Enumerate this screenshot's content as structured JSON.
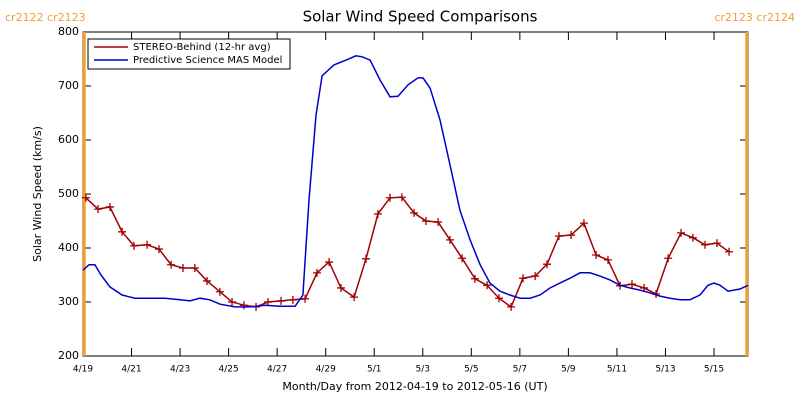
{
  "chart_data": {
    "type": "line",
    "title": "Solar Wind Speed Comparisons",
    "xlabel": "Month/Day from 2012-04-19 to 2012-05-16 (UT)",
    "ylabel": "Solar Wind Speed (km/s)",
    "xlim": [
      0,
      27.4
    ],
    "ylim": [
      200,
      800
    ],
    "yticks": [
      200,
      300,
      400,
      500,
      600,
      700,
      800
    ],
    "xticks": [
      {
        "value": 0,
        "label": "4/19"
      },
      {
        "value": 2,
        "label": "4/21"
      },
      {
        "value": 4,
        "label": "4/23"
      },
      {
        "value": 6,
        "label": "4/25"
      },
      {
        "value": 8,
        "label": "4/27"
      },
      {
        "value": 10,
        "label": "4/29"
      },
      {
        "value": 12,
        "label": "5/1"
      },
      {
        "value": 14,
        "label": "5/3"
      },
      {
        "value": 16,
        "label": "5/5"
      },
      {
        "value": 18,
        "label": "5/7"
      },
      {
        "value": 20,
        "label": "5/9"
      },
      {
        "value": 22,
        "label": "5/11"
      },
      {
        "value": 24,
        "label": "5/13"
      },
      {
        "value": 26,
        "label": "5/15"
      }
    ],
    "vlines": [
      {
        "x": 0.05,
        "label": "cr2122 cr2123",
        "color": "#f0a030"
      },
      {
        "x": 27.35,
        "label": "cr2123 cr2124",
        "color": "#f0a030"
      }
    ],
    "series": [
      {
        "name": "STEREO-Behind (12-hr avg)",
        "color": "#a00000",
        "marker": "plus",
        "x": [
          0.12,
          0.62,
          1.11,
          1.61,
          2.1,
          2.64,
          3.13,
          3.63,
          4.12,
          4.61,
          5.11,
          5.64,
          6.14,
          6.63,
          7.13,
          7.62,
          8.16,
          8.65,
          9.15,
          9.64,
          10.14,
          10.63,
          11.17,
          11.66,
          12.15,
          12.65,
          13.14,
          13.64,
          14.13,
          14.63,
          15.12,
          15.62,
          16.15,
          16.65,
          17.14,
          17.64,
          18.13,
          18.63,
          19.12,
          19.61,
          20.11,
          20.64,
          21.14,
          21.63,
          22.13,
          22.62,
          23.12,
          23.61,
          24.11,
          24.64,
          25.13,
          25.63,
          26.12,
          26.62
        ],
        "values": [
          493,
          472,
          476,
          430,
          404,
          406,
          398,
          369,
          363,
          363,
          339,
          319,
          300,
          294,
          291,
          300,
          302,
          304,
          306,
          354,
          374,
          326,
          309,
          380,
          463,
          493,
          494,
          465,
          450,
          448,
          415,
          381,
          343,
          331,
          307,
          291,
          344,
          348,
          370,
          422,
          424,
          446,
          387,
          378,
          330,
          333,
          326,
          315,
          381,
          428,
          419,
          406,
          409,
          393
        ]
      },
      {
        "name": "Predictive Science MAS Model",
        "color": "#0000cc",
        "x": [
          0,
          0.25,
          0.49,
          0.74,
          1.11,
          1.61,
          2.14,
          2.76,
          3.38,
          4.0,
          4.41,
          4.82,
          5.23,
          5.65,
          6.26,
          6.88,
          7.5,
          8.12,
          8.74,
          9.06,
          9.31,
          9.6,
          9.85,
          10.34,
          10.84,
          11.25,
          11.5,
          11.83,
          12.24,
          12.65,
          12.98,
          13.39,
          13.8,
          14.01,
          14.3,
          14.71,
          15.12,
          15.53,
          15.95,
          16.36,
          16.77,
          17.18,
          17.59,
          18.01,
          18.42,
          18.83,
          19.24,
          19.65,
          20.07,
          20.48,
          20.89,
          21.3,
          21.71,
          22.13,
          22.54,
          22.95,
          23.36,
          23.77,
          24.19,
          24.6,
          25.01,
          25.42,
          25.75,
          26.0,
          26.25,
          26.58,
          27.07,
          27.4
        ],
        "values": [
          359,
          369,
          369,
          350,
          328,
          313,
          307,
          307,
          307,
          304,
          302,
          307,
          304,
          296,
          291,
          291,
          294,
          292,
          292,
          313,
          489,
          646,
          719,
          739,
          748,
          756,
          754,
          748,
          711,
          680,
          681,
          702,
          715,
          715,
          696,
          637,
          554,
          470,
          415,
          369,
          335,
          320,
          313,
          307,
          307,
          313,
          326,
          335,
          344,
          354,
          354,
          348,
          341,
          331,
          326,
          322,
          317,
          311,
          307,
          304,
          304,
          313,
          331,
          335,
          331,
          320,
          324,
          331
        ]
      }
    ]
  }
}
